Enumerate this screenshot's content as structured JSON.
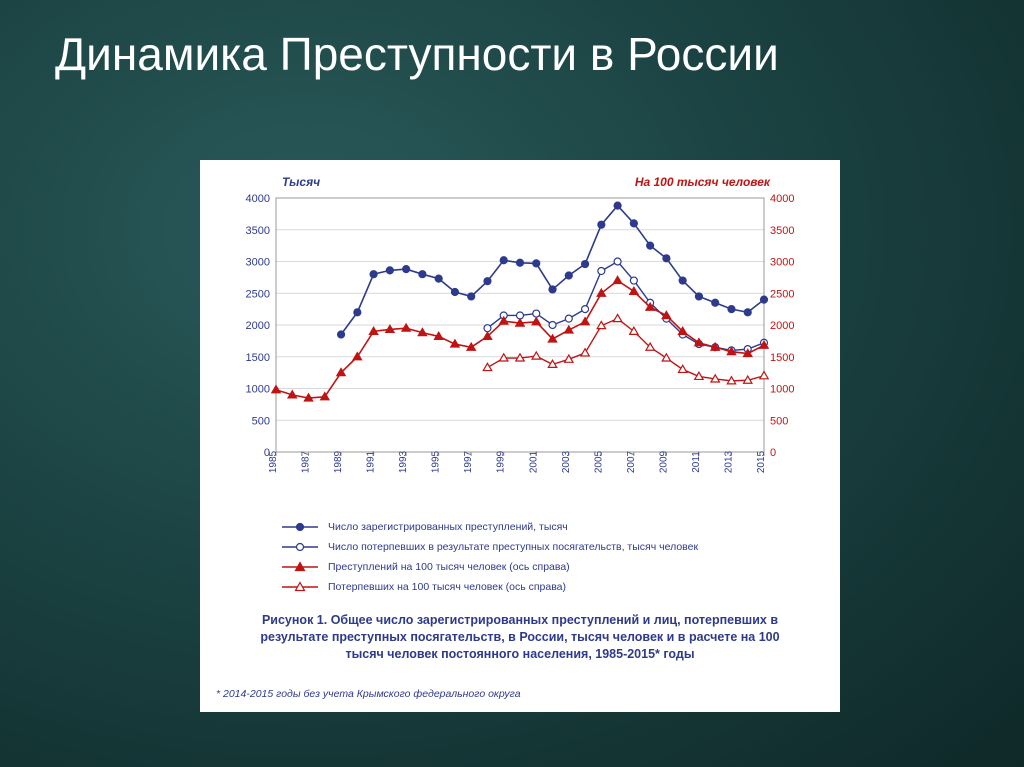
{
  "slide": {
    "title": "Динамика Преступности в России",
    "background_gradient": [
      "#2a5a5a",
      "#1a4040",
      "#0f2828"
    ]
  },
  "chart": {
    "type": "line",
    "panel_background": "#ffffff",
    "plot_border_color": "#999999",
    "grid_color": "#d9d9d9",
    "x_years": [
      1985,
      1986,
      1987,
      1988,
      1989,
      1990,
      1991,
      1992,
      1993,
      1994,
      1995,
      1996,
      1997,
      1998,
      1999,
      2000,
      2001,
      2002,
      2003,
      2004,
      2005,
      2006,
      2007,
      2008,
      2009,
      2010,
      2011,
      2012,
      2013,
      2014,
      2015
    ],
    "x_tick_years": [
      1985,
      1987,
      1989,
      1991,
      1993,
      1995,
      1997,
      1999,
      2001,
      2003,
      2005,
      2007,
      2009,
      2011,
      2013,
      2015
    ],
    "y_left": {
      "label": "Тысяч",
      "color": "#2e3a8c",
      "min": 0,
      "max": 4000,
      "step": 500,
      "fontsize": 11
    },
    "y_right": {
      "label": "На 100 тысяч человек",
      "color": "#c01414",
      "min": 0,
      "max": 4000,
      "step": 500,
      "fontsize": 11
    },
    "x_axis": {
      "color": "#2e3a8c",
      "fontsize": 10,
      "rotate": -90
    },
    "series": [
      {
        "id": "crimes_total",
        "label": "Число зарегистрированных преступлений, тысяч",
        "axis": "left",
        "color": "#2e3a8c",
        "marker": "circle",
        "marker_fill": "#2e3a8c",
        "marker_size": 5,
        "line_width": 1.6,
        "values": {
          "1989": 1850,
          "1990": 2200,
          "1991": 2800,
          "1992": 2860,
          "1993": 2880,
          "1994": 2800,
          "1995": 2730,
          "1996": 2520,
          "1997": 2450,
          "1998": 2690,
          "1999": 3020,
          "2000": 2980,
          "2001": 2970,
          "2002": 2560,
          "2003": 2780,
          "2004": 2960,
          "2005": 3580,
          "2006": 3880,
          "2007": 3600,
          "2008": 3250,
          "2009": 3050,
          "2010": 2700,
          "2011": 2450,
          "2012": 2350,
          "2013": 2250,
          "2014": 2200,
          "2015": 2400
        }
      },
      {
        "id": "victims_total",
        "label": "Число потерпевших в результате преступных посягательств, тысяч человек",
        "axis": "left",
        "color": "#2e3a8c",
        "marker": "circle",
        "marker_fill": "#ffffff",
        "marker_size": 5,
        "line_width": 1.4,
        "values": {
          "1998": 1950,
          "1999": 2150,
          "2000": 2150,
          "2001": 2180,
          "2002": 2000,
          "2003": 2100,
          "2004": 2250,
          "2005": 2850,
          "2006": 3000,
          "2007": 2700,
          "2008": 2350,
          "2009": 2100,
          "2010": 1850,
          "2011": 1700,
          "2012": 1650,
          "2013": 1600,
          "2014": 1620,
          "2015": 1720
        }
      },
      {
        "id": "crimes_per100k",
        "label": "Преступлений на 100 тысяч человек (ось справа)",
        "axis": "right",
        "color": "#c01414",
        "marker": "triangle",
        "marker_fill": "#c01414",
        "marker_size": 5,
        "line_width": 1.6,
        "values": {
          "1985": 980,
          "1986": 900,
          "1987": 850,
          "1988": 870,
          "1989": 1250,
          "1990": 1500,
          "1991": 1900,
          "1992": 1930,
          "1993": 1950,
          "1994": 1880,
          "1995": 1820,
          "1996": 1700,
          "1997": 1650,
          "1998": 1820,
          "1999": 2060,
          "2000": 2030,
          "2001": 2050,
          "2002": 1780,
          "2003": 1920,
          "2004": 2050,
          "2005": 2500,
          "2006": 2700,
          "2007": 2530,
          "2008": 2280,
          "2009": 2150,
          "2010": 1900,
          "2011": 1720,
          "2012": 1650,
          "2013": 1580,
          "2014": 1550,
          "2015": 1680
        }
      },
      {
        "id": "victims_per100k",
        "label": "Потерпевших на 100 тысяч человек (ось справа)",
        "axis": "right",
        "color": "#c01414",
        "marker": "triangle",
        "marker_fill": "#ffffff",
        "marker_size": 5,
        "line_width": 1.4,
        "values": {
          "1998": 1330,
          "1999": 1480,
          "2000": 1480,
          "2001": 1510,
          "2002": 1380,
          "2003": 1460,
          "2004": 1560,
          "2005": 1990,
          "2006": 2100,
          "2007": 1900,
          "2008": 1650,
          "2009": 1480,
          "2010": 1300,
          "2011": 1190,
          "2012": 1150,
          "2013": 1120,
          "2014": 1130,
          "2015": 1200
        }
      }
    ],
    "legend": {
      "position": "below",
      "fontsize": 10.5,
      "text_color": "#2e3a8c"
    },
    "caption": "Рисунок 1. Общее число зарегистрированных преступлений и лиц, потерпевших в результате преступных посягательств, в России, тысяч человек и в расчете на 100 тысяч человек постоянного населения, 1985-2015* годы",
    "footnote": "* 2014-2015 годы без учета Крымского федерального округа",
    "caption_color": "#2e3a8c",
    "caption_fontsize": 12.5
  }
}
